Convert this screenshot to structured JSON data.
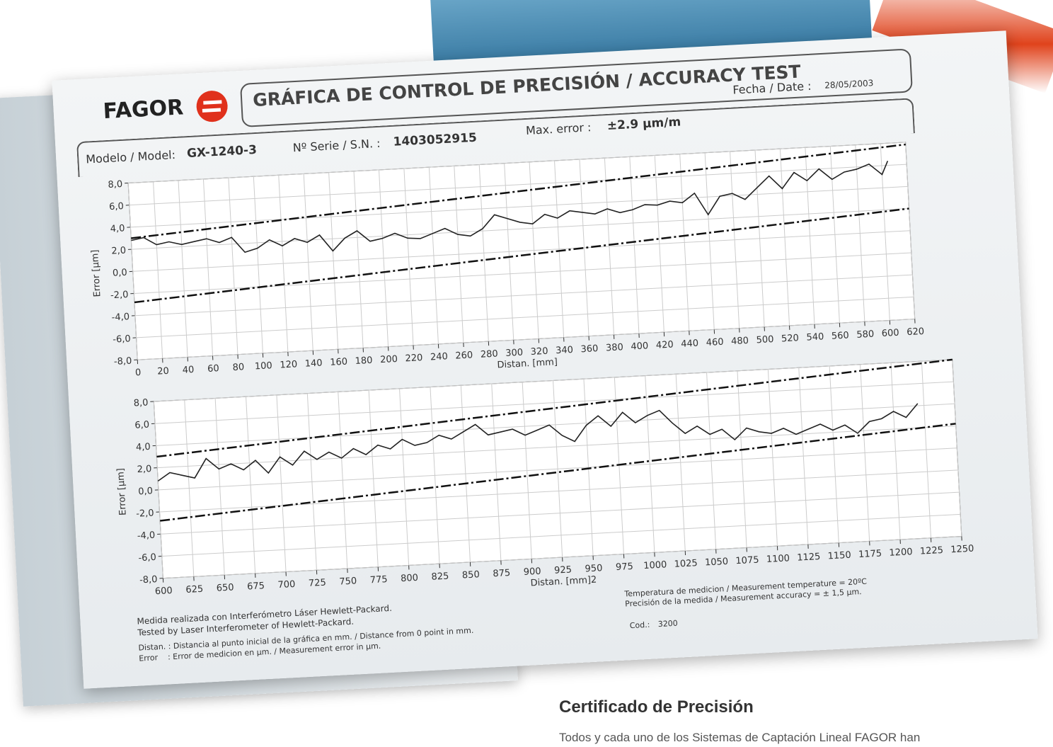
{
  "header": {
    "brand": "FAGOR",
    "title": "GRÁFICA DE CONTROL DE PRECISIÓN / ACCURACY TEST",
    "date_label": "Fecha / Date :",
    "date": "28/05/2003"
  },
  "info": {
    "model_label": "Modelo / Model:",
    "model": "GX-1240-3",
    "serial_label": "Nº Serie / S.N. :",
    "serial": "1403052915",
    "max_error_label": "Max. error :",
    "max_error": "±2.9 µm/m"
  },
  "chart_data": [
    {
      "type": "line",
      "x_label": "Distan. [mm]",
      "y_label": "Error [µm]",
      "xlim": [
        0,
        620
      ],
      "ylim": [
        -8,
        8
      ],
      "xticks": [
        0,
        20,
        40,
        60,
        80,
        100,
        120,
        140,
        160,
        180,
        200,
        220,
        240,
        260,
        280,
        300,
        320,
        340,
        360,
        380,
        400,
        420,
        440,
        460,
        480,
        500,
        520,
        540,
        560,
        580,
        600,
        620
      ],
      "yticks": [
        {
          "value": 8,
          "label": "8,0"
        },
        {
          "value": 6,
          "label": "6,0"
        },
        {
          "value": 4,
          "label": "4,0"
        },
        {
          "value": 2,
          "label": "2,0"
        },
        {
          "value": 0,
          "label": "0,0"
        },
        {
          "value": -2,
          "label": "-2,0"
        },
        {
          "value": -4,
          "label": "-4,0"
        },
        {
          "value": -6,
          "label": "-6,0"
        },
        {
          "value": -8,
          "label": "-8,0"
        }
      ],
      "grid": true,
      "x": [
        0,
        10,
        20,
        30,
        40,
        50,
        60,
        70,
        80,
        90,
        100,
        110,
        120,
        130,
        140,
        150,
        160,
        170,
        180,
        190,
        200,
        210,
        220,
        230,
        240,
        250,
        260,
        270,
        280,
        290,
        300,
        310,
        320,
        330,
        340,
        350,
        360,
        370,
        380,
        390,
        400,
        410,
        420,
        430,
        440,
        450,
        460,
        470,
        480,
        490,
        500,
        510,
        520,
        530,
        540,
        550,
        560,
        570,
        580,
        590,
        600,
        605
      ],
      "series": [
        {
          "color": "#222222",
          "values": [
            2.8,
            3.0,
            2.3,
            2.5,
            2.2,
            2.4,
            2.6,
            2.2,
            2.6,
            1.2,
            1.5,
            2.2,
            1.6,
            2.2,
            1.8,
            2.4,
            0.9,
            2.0,
            2.6,
            1.6,
            1.8,
            2.2,
            1.7,
            1.6,
            2.0,
            2.4,
            1.8,
            1.6,
            2.2,
            3.4,
            3.0,
            2.6,
            2.4,
            3.2,
            2.8,
            3.4,
            3.2,
            3.0,
            3.4,
            3.0,
            3.2,
            3.6,
            3.5,
            3.8,
            3.6,
            4.4,
            2.4,
            4.0,
            4.2,
            3.6,
            4.6,
            5.6,
            4.4,
            5.8,
            5.0,
            6.0,
            5.0,
            5.6,
            5.8,
            6.2,
            5.2,
            6.4
          ]
        }
      ],
      "limits": {
        "x": [
          0,
          620
        ],
        "upper": [
          3.0,
          7.8
        ],
        "lower": [
          -2.8,
          2.0
        ]
      }
    },
    {
      "type": "line",
      "x_label": "Distan. [mm]2",
      "y_label": "Error [µm]",
      "xlim": [
        600,
        1250
      ],
      "ylim": [
        -8,
        8
      ],
      "xticks": [
        600,
        625,
        650,
        675,
        700,
        725,
        750,
        775,
        800,
        825,
        850,
        875,
        900,
        925,
        950,
        975,
        1000,
        1025,
        1050,
        1075,
        1100,
        1125,
        1150,
        1175,
        1200,
        1225,
        1250
      ],
      "yticks": [
        {
          "value": 8,
          "label": "8,0"
        },
        {
          "value": 6,
          "label": "6,0"
        },
        {
          "value": 4,
          "label": "4,0"
        },
        {
          "value": 2,
          "label": "2,0"
        },
        {
          "value": 0,
          "label": "0,0"
        },
        {
          "value": -2,
          "label": "-2,0"
        },
        {
          "value": -4,
          "label": "-4,0"
        },
        {
          "value": -6,
          "label": "-6,0"
        },
        {
          "value": -8,
          "label": "-8,0"
        }
      ],
      "grid": true,
      "x": [
        600,
        610,
        620,
        630,
        640,
        650,
        660,
        670,
        680,
        690,
        700,
        710,
        720,
        730,
        740,
        750,
        760,
        770,
        780,
        790,
        800,
        810,
        820,
        830,
        840,
        850,
        860,
        870,
        880,
        890,
        900,
        910,
        920,
        930,
        940,
        950,
        960,
        970,
        980,
        990,
        1000,
        1010,
        1020,
        1030,
        1040,
        1050,
        1060,
        1070,
        1080,
        1090,
        1100,
        1110,
        1120,
        1130,
        1140,
        1150,
        1160,
        1170,
        1180,
        1190,
        1200,
        1210,
        1220
      ],
      "series": [
        {
          "color": "#222222",
          "values": [
            0.8,
            1.5,
            1.2,
            0.9,
            2.6,
            1.6,
            2.0,
            1.4,
            2.2,
            1.0,
            2.4,
            1.6,
            2.8,
            2.0,
            2.6,
            2.0,
            2.8,
            2.2,
            3.0,
            2.6,
            3.4,
            2.8,
            3.0,
            3.6,
            3.2,
            3.8,
            4.4,
            3.4,
            3.6,
            3.8,
            3.2,
            3.6,
            4.0,
            3.0,
            2.4,
            3.8,
            4.6,
            3.6,
            4.8,
            3.8,
            4.4,
            4.8,
            3.6,
            2.6,
            3.2,
            2.4,
            2.8,
            1.8,
            2.8,
            2.4,
            2.2,
            2.6,
            2.0,
            2.4,
            2.8,
            2.2,
            2.6,
            1.8,
            2.8,
            3.0,
            3.6,
            3.0,
            4.2
          ]
        }
      ],
      "limits": {
        "x": [
          600,
          1250
        ],
        "upper": [
          3.0,
          8.0
        ],
        "lower": [
          -2.8,
          2.2
        ]
      }
    }
  ],
  "notes": {
    "line1": "Medida realizada con Interferómetro Láser Hewlett-Packard.",
    "line2": "Tested by Laser Interferometer of Hewlett-Packard.",
    "line3": "Distan. : Distancia al punto inicial de la gráfica en mm. / Distance from 0 point in mm.",
    "line4": "Error    : Error de medicion en µm. / Measurement error in µm.",
    "temperature": "Temperatura de medicion / Measurement temperature = 20ºC",
    "accuracy": "Precisión de la medida / Measurement accuracy = ± 1,5 µm.",
    "code_label": "Cod.:",
    "code": "3200"
  },
  "article": {
    "heading": "Certificado de Precisión",
    "text": "Todos y cada uno de los Sistemas de Captación Lineal FAGOR han"
  }
}
